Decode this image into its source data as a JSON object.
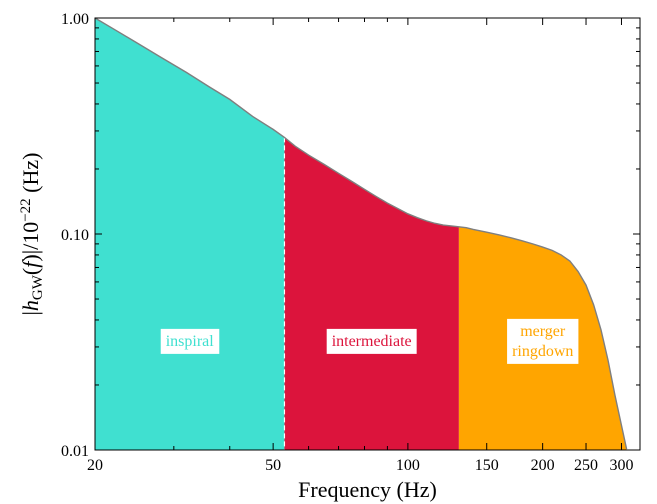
{
  "chart_data": {
    "type": "area",
    "title": "",
    "xlabel": "Frequency (Hz)",
    "ylabel": "|h_GW(f)|/10^-22 (Hz)",
    "ylabel_parts": {
      "open": "|",
      "h": "h",
      "sub": "GW",
      "mid": "(",
      "f": "f",
      "close": ")|/10",
      "exp": "−22",
      "unit": " (Hz)"
    },
    "x_scale": "log",
    "y_scale": "log",
    "xlim": [
      20,
      330
    ],
    "ylim": [
      0.01,
      1.0
    ],
    "x_ticks": [
      {
        "value": 20,
        "label": "20"
      },
      {
        "value": 50,
        "label": "50"
      },
      {
        "value": 100,
        "label": "100"
      },
      {
        "value": 150,
        "label": "150"
      },
      {
        "value": 200,
        "label": "200"
      },
      {
        "value": 250,
        "label": "250"
      },
      {
        "value": 300,
        "label": "300"
      }
    ],
    "y_ticks": [
      {
        "value": 0.01,
        "label": "0.01"
      },
      {
        "value": 0.1,
        "label": "0.10"
      },
      {
        "value": 1.0,
        "label": "1.00"
      }
    ],
    "curve": {
      "x": [
        20,
        22,
        25,
        28,
        32,
        36,
        40,
        45,
        50,
        53,
        56,
        60,
        65,
        70,
        75,
        80,
        85,
        90,
        95,
        100,
        105,
        110,
        115,
        120,
        125,
        130,
        135,
        140,
        150,
        160,
        170,
        180,
        190,
        200,
        210,
        220,
        230,
        240,
        250,
        260,
        270,
        280,
        290,
        300,
        308
      ],
      "y": [
        1.0,
        0.89,
        0.76,
        0.66,
        0.56,
        0.48,
        0.42,
        0.35,
        0.305,
        0.28,
        0.255,
        0.232,
        0.21,
        0.191,
        0.175,
        0.161,
        0.149,
        0.139,
        0.131,
        0.124,
        0.119,
        0.115,
        0.112,
        0.11,
        0.109,
        0.108,
        0.107,
        0.105,
        0.102,
        0.099,
        0.096,
        0.093,
        0.09,
        0.087,
        0.084,
        0.08,
        0.075,
        0.067,
        0.058,
        0.047,
        0.036,
        0.026,
        0.018,
        0.013,
        0.0101
      ]
    },
    "regions": [
      {
        "label": "inspiral",
        "x_start": 20,
        "x_end": 53,
        "color": "#40E0D0"
      },
      {
        "label": "intermediate",
        "x_start": 53,
        "x_end": 130,
        "color": "#DC143C"
      },
      {
        "label": "merger\nringdown",
        "x_start": 130,
        "x_end": 308,
        "color": "#FFA500"
      }
    ],
    "boundary_line": {
      "x": 53,
      "style": "dashed",
      "color": "#ffffff"
    },
    "curve_color": "#7f7f7f",
    "grid": false,
    "legend": "none"
  }
}
